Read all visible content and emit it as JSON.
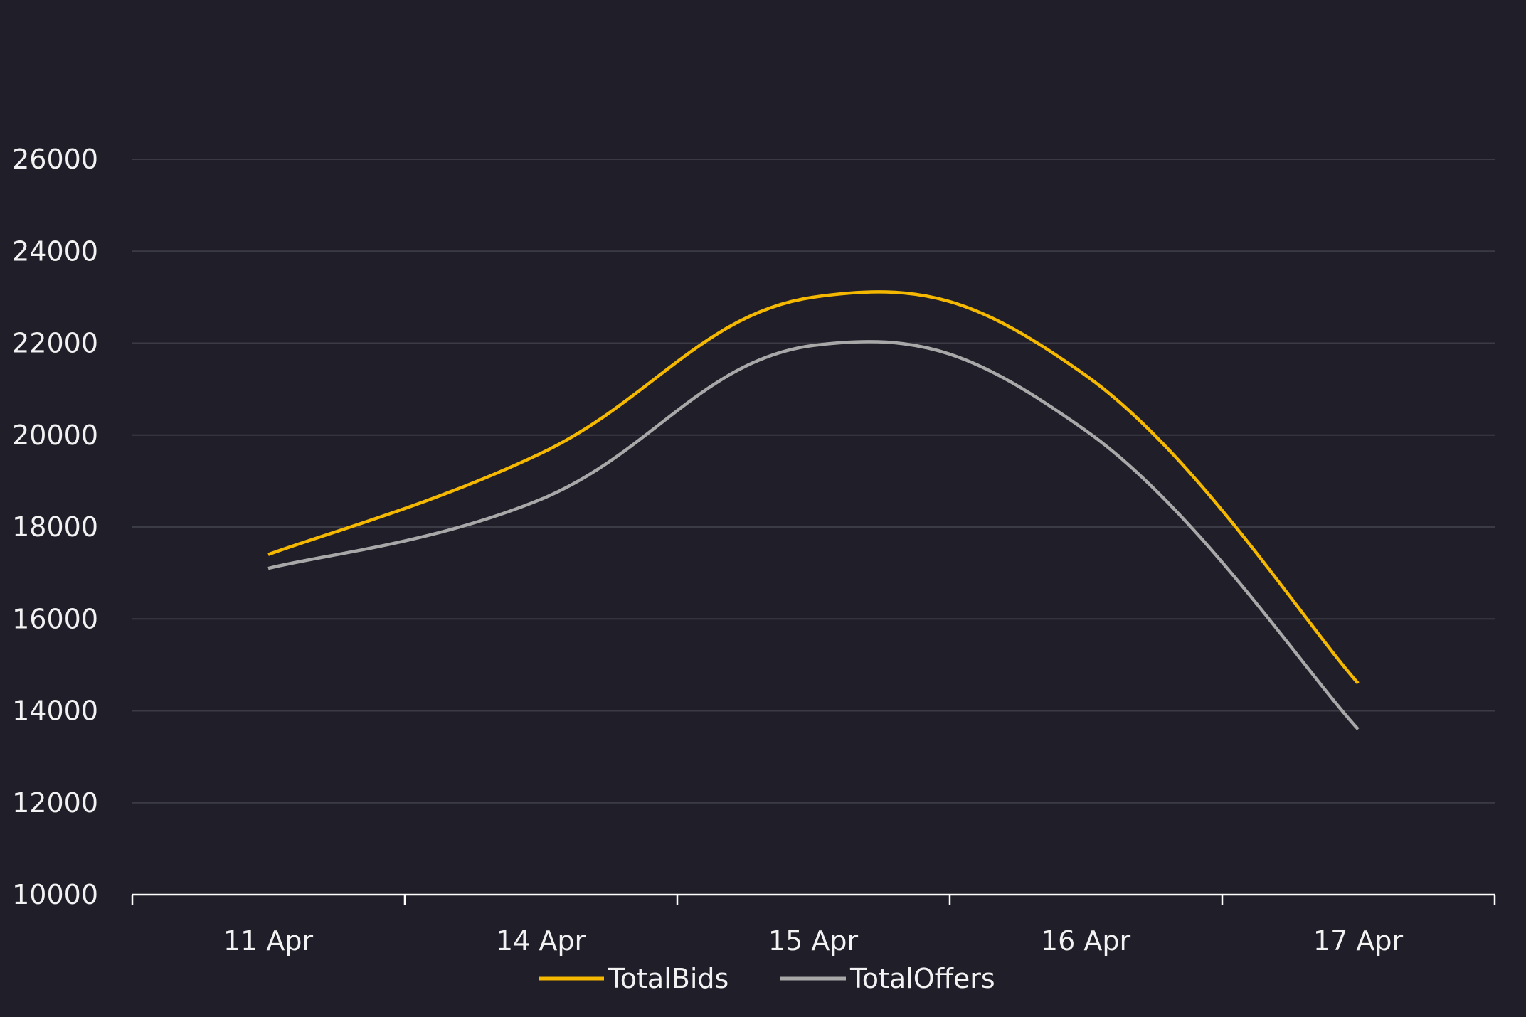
{
  "chart_data": {
    "type": "line",
    "categories": [
      "11 Apr",
      "14 Apr",
      "15 Apr",
      "16 Apr",
      "17 Apr"
    ],
    "ylim": [
      10000,
      26000
    ],
    "yticks": [
      "10000",
      "12000",
      "14000",
      "16000",
      "18000",
      "20000",
      "22000",
      "24000",
      "26000"
    ],
    "grid": true,
    "legend_position": "bottom",
    "series": [
      {
        "name": "TotalBids",
        "color": "#f5b800",
        "values": [
          17400,
          19600,
          23000,
          21300,
          14600
        ]
      },
      {
        "name": "TotalOffers",
        "color": "#a8a8a8",
        "values": [
          17100,
          18600,
          21950,
          20100,
          13600
        ]
      }
    ],
    "axis_color": "#ffffff",
    "grid_color": "#3b3b45"
  }
}
